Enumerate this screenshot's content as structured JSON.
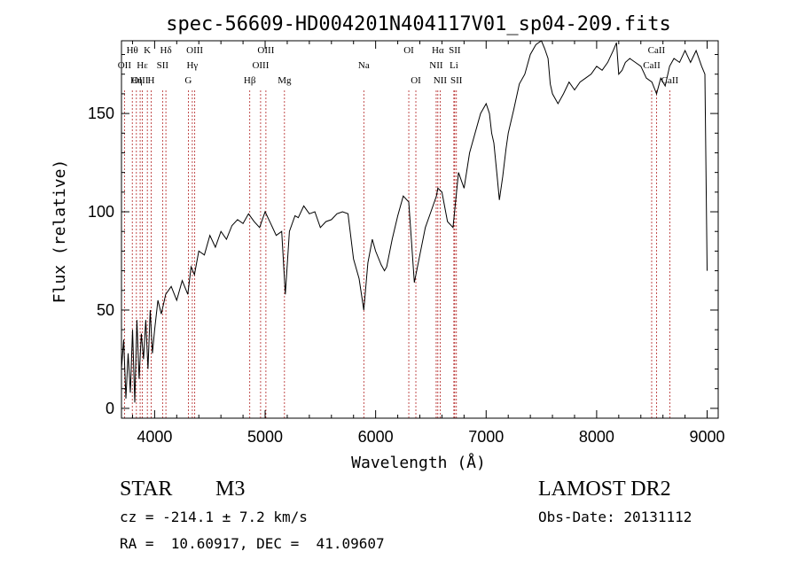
{
  "chart_data": {
    "type": "line",
    "title": "spec-56609-HD004201N404117V01_sp04-209.fits",
    "xlabel": "Wavelength (Å)",
    "ylabel": "Flux (relative)",
    "xlim": [
      3700,
      9100
    ],
    "ylim": [
      -5,
      187
    ],
    "x_ticks": [
      4000,
      5000,
      6000,
      7000,
      8000,
      9000
    ],
    "y_ticks": [
      0,
      50,
      100,
      150
    ],
    "series": [
      {
        "x": [
          3700,
          3720,
          3740,
          3760,
          3780,
          3800,
          3820,
          3840,
          3860,
          3880,
          3900,
          3920,
          3940,
          3960,
          3980,
          4000,
          4030,
          4060,
          4100,
          4150,
          4200,
          4250,
          4300,
          4330,
          4360,
          4400,
          4450,
          4500,
          4550,
          4600,
          4650,
          4700,
          4750,
          4800,
          4850,
          4900,
          4950,
          5000,
          5050,
          5100,
          5150,
          5183,
          5220,
          5270,
          5300,
          5350,
          5400,
          5450,
          5500,
          5550,
          5600,
          5650,
          5700,
          5750,
          5800,
          5850,
          5893,
          5930,
          5970,
          6000,
          6050,
          6080,
          6100,
          6150,
          6200,
          6250,
          6300,
          6350,
          6400,
          6450,
          6500,
          6550,
          6563,
          6600,
          6650,
          6700,
          6750,
          6800,
          6850,
          6900,
          6950,
          7000,
          7030,
          7050,
          7070,
          7100,
          7120,
          7150,
          7180,
          7200,
          7250,
          7300,
          7350,
          7400,
          7450,
          7500,
          7530,
          7560,
          7580,
          7600,
          7650,
          7700,
          7750,
          7800,
          7850,
          7900,
          7950,
          8000,
          8050,
          8100,
          8150,
          8180,
          8200,
          8230,
          8260,
          8300,
          8350,
          8400,
          8450,
          8500,
          8542,
          8580,
          8620,
          8660,
          8700,
          8750,
          8800,
          8850,
          8900,
          8950,
          8980,
          9000
        ],
        "y": [
          20,
          35,
          5,
          28,
          8,
          40,
          3,
          45,
          15,
          38,
          25,
          45,
          20,
          50,
          28,
          40,
          55,
          48,
          58,
          62,
          55,
          65,
          58,
          72,
          68,
          80,
          78,
          88,
          82,
          90,
          86,
          93,
          96,
          94,
          99,
          95,
          92,
          100,
          94,
          88,
          90,
          58,
          90,
          98,
          97,
          103,
          99,
          100,
          92,
          95,
          96,
          99,
          100,
          99,
          76,
          66,
          50,
          74,
          86,
          80,
          73,
          70,
          72,
          86,
          98,
          108,
          105,
          64,
          78,
          92,
          100,
          108,
          112,
          110,
          95,
          92,
          120,
          112,
          130,
          140,
          150,
          155,
          150,
          140,
          135,
          118,
          106,
          118,
          132,
          140,
          152,
          165,
          170,
          180,
          185,
          187,
          183,
          178,
          165,
          160,
          155,
          160,
          166,
          162,
          166,
          168,
          170,
          174,
          172,
          176,
          182,
          186,
          170,
          172,
          176,
          178,
          176,
          174,
          168,
          166,
          160,
          168,
          164,
          174,
          178,
          176,
          182,
          176,
          182,
          174,
          170,
          70
        ]
      }
    ],
    "line_markers": [
      {
        "label": "Hθ",
        "wavelength": 3798,
        "row": 0
      },
      {
        "label": "OII",
        "wavelength": 3727,
        "row": 1
      },
      {
        "label": "OIII",
        "wavelength": 3869,
        "row": 2
      },
      {
        "label": "K",
        "wavelength": 3934,
        "row": 0
      },
      {
        "label": "H",
        "wavelength": 3969,
        "row": 2
      },
      {
        "label": "Hε",
        "wavelength": 3889,
        "row": 1
      },
      {
        "label": "Hη",
        "wavelength": 3835,
        "row": 2
      },
      {
        "label": "Hδ",
        "wavelength": 4102,
        "row": 0
      },
      {
        "label": "SII",
        "wavelength": 4072,
        "row": 1
      },
      {
        "label": "OIII",
        "wavelength": 4363,
        "row": 0
      },
      {
        "label": "Hγ",
        "wavelength": 4341,
        "row": 1
      },
      {
        "label": "G",
        "wavelength": 4305,
        "row": 2
      },
      {
        "label": "Hβ",
        "wavelength": 4861,
        "row": 2
      },
      {
        "label": "OIII",
        "wavelength": 4959,
        "row": 1
      },
      {
        "label": "OIII",
        "wavelength": 5007,
        "row": 0
      },
      {
        "label": "Mg",
        "wavelength": 5175,
        "row": 2
      },
      {
        "label": "Na",
        "wavelength": 5893,
        "row": 1
      },
      {
        "label": "OI",
        "wavelength": 6300,
        "row": 0
      },
      {
        "label": "OI",
        "wavelength": 6364,
        "row": 2
      },
      {
        "label": "Hα",
        "wavelength": 6563,
        "row": 0
      },
      {
        "label": "NII",
        "wavelength": 6548,
        "row": 1
      },
      {
        "label": "NII",
        "wavelength": 6584,
        "row": 2
      },
      {
        "label": "Li",
        "wavelength": 6708,
        "row": 1
      },
      {
        "label": "SII",
        "wavelength": 6716,
        "row": 0
      },
      {
        "label": "SII",
        "wavelength": 6731,
        "row": 2
      },
      {
        "label": "CaII",
        "wavelength": 8542,
        "row": 0
      },
      {
        "label": "CaII",
        "wavelength": 8498,
        "row": 1
      },
      {
        "label": "CaII",
        "wavelength": 8662,
        "row": 2
      }
    ],
    "grid": false
  },
  "info": {
    "object_class": "STAR",
    "subclass": "M3",
    "survey": "LAMOST DR2",
    "cz": "cz = -214.1 ± 7.2 km/s",
    "obs_date": "Obs-Date: 20131112",
    "coords": "RA =  10.60917, DEC =  41.09607"
  },
  "colors": {
    "line": "#000000",
    "marker": "#b22222"
  }
}
